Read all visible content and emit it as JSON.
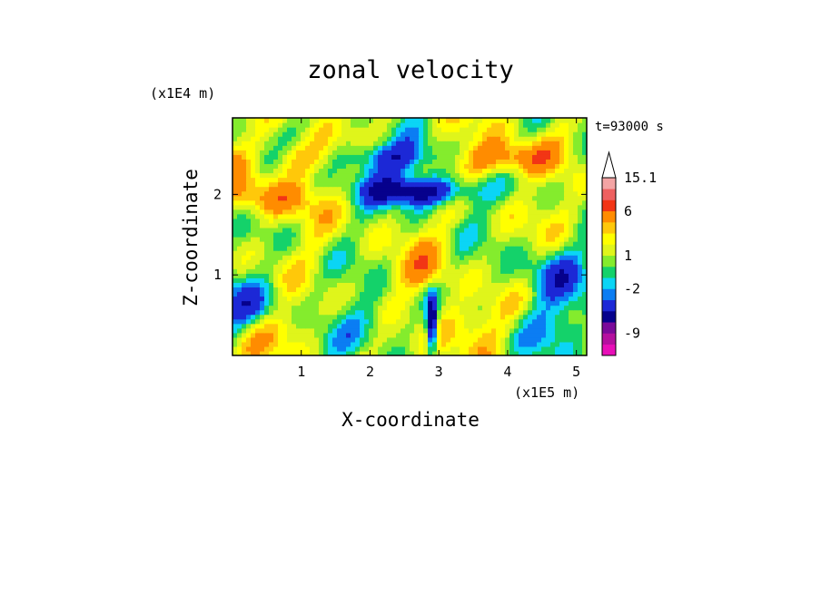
{
  "chart_data": {
    "type": "heatmap",
    "title": "zonal velocity",
    "xlabel": "X-coordinate",
    "ylabel": "Z-coordinate",
    "x_unit_label": "(x1E5 m)",
    "y_unit_label": "(x1E4 m)",
    "time_label": "t=93000 s",
    "xlim": [
      0,
      5.15
    ],
    "ylim": [
      0,
      2.95
    ],
    "x_ticks": [
      1,
      2,
      3,
      4,
      5
    ],
    "y_ticks": [
      1,
      2
    ],
    "x_tick_labels": [
      "1",
      "2",
      "3",
      "4",
      "5"
    ],
    "y_tick_labels": [
      "1",
      "2"
    ],
    "colorbar": {
      "levels": [
        -13,
        -11,
        -9,
        -7,
        -5,
        -3,
        -2,
        -1,
        0,
        1,
        2,
        3,
        4,
        6,
        9,
        12,
        15.1
      ],
      "labels": [
        {
          "value": 15.1,
          "text": "15.1"
        },
        {
          "value": 6,
          "text": "6"
        },
        {
          "value": 1,
          "text": "1"
        },
        {
          "value": -2,
          "text": "-2"
        },
        {
          "value": -9,
          "text": "-9"
        }
      ],
      "colors": [
        "#e80fb8",
        "#b5109f",
        "#7a0a9a",
        "#06018c",
        "#1c28d6",
        "#0b7df3",
        "#0bd5f5",
        "#14d26a",
        "#84ec2d",
        "#dff51b",
        "#ffff00",
        "#ffc80a",
        "#ff8c00",
        "#f23515",
        "#ee6060",
        "#f3a4a4"
      ]
    }
  }
}
